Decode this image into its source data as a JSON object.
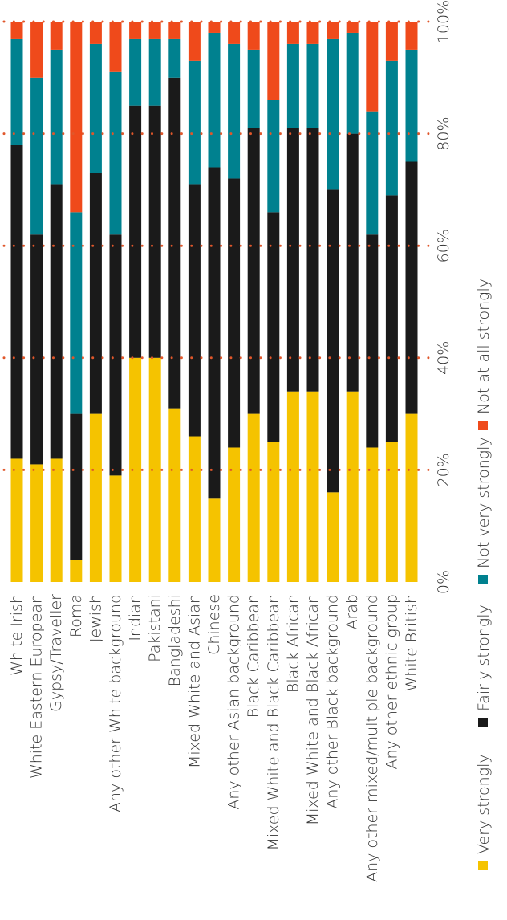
{
  "chart_data": {
    "type": "bar",
    "stacked": true,
    "orientation": "vertical-rotated",
    "ylim": [
      0,
      100
    ],
    "y_ticks": [
      "0%",
      "20%",
      "40%",
      "60%",
      "80%",
      "100%"
    ],
    "grid": true,
    "legend_position": "right",
    "categories": [
      "White Irish",
      "White Eastern European",
      "Gypsy/Traveller",
      "Roma",
      "Jewish",
      "Any other White background",
      "Indian",
      "Pakistani",
      "Bangladeshi",
      "Mixed White and Asian",
      "Chinese",
      "Any other Asian background",
      "Black Caribbean",
      "Mixed White and Black Caribbean",
      "Black African",
      "Mixed White and Black African",
      "Any other Black background",
      "Arab",
      "Any other mixed/multiple background",
      "Any other ethnic group",
      "White British"
    ],
    "series": [
      {
        "name": "Very strongly",
        "color": "#f5c300",
        "values": [
          22,
          21,
          22,
          4,
          30,
          19,
          40,
          40,
          31,
          26,
          15,
          24,
          30,
          25,
          34,
          34,
          16,
          34,
          24,
          25,
          30
        ]
      },
      {
        "name": "Fairly strongly",
        "color": "#1a1a1a",
        "values": [
          56,
          41,
          49,
          26,
          43,
          43,
          45,
          45,
          59,
          45,
          59,
          48,
          51,
          41,
          47,
          47,
          54,
          46,
          38,
          44,
          45
        ]
      },
      {
        "name": "Not very strongly",
        "color": "#00818f",
        "values": [
          19,
          28,
          24,
          36,
          23,
          29,
          12,
          12,
          7,
          22,
          24,
          24,
          14,
          20,
          15,
          15,
          27,
          18,
          22,
          24,
          20
        ]
      },
      {
        "name": "Not at all strongly",
        "color": "#ef4a1b",
        "values": [
          3,
          10,
          5,
          34,
          4,
          9,
          3,
          3,
          3,
          7,
          2,
          4,
          5,
          14,
          4,
          4,
          3,
          2,
          16,
          7,
          5
        ]
      }
    ]
  },
  "colors": {
    "grid": "#e0572b",
    "axis_text": "#333333"
  }
}
